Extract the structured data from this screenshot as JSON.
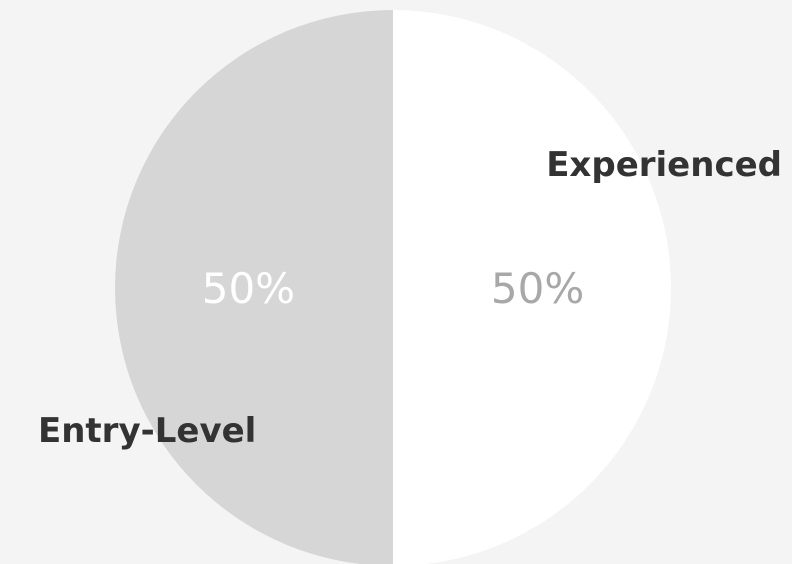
{
  "chart_data": {
    "type": "pie",
    "categories": [
      "Entry-Level",
      "Experienced"
    ],
    "values": [
      50,
      50
    ],
    "value_labels": [
      "50%",
      "50%"
    ],
    "colors": [
      "#d6d6d6",
      "#ffffff"
    ],
    "value_label_colors": [
      "#ffffff",
      "#a8a8a8"
    ],
    "label_color": "#333333",
    "background": "#f4f4f4"
  }
}
